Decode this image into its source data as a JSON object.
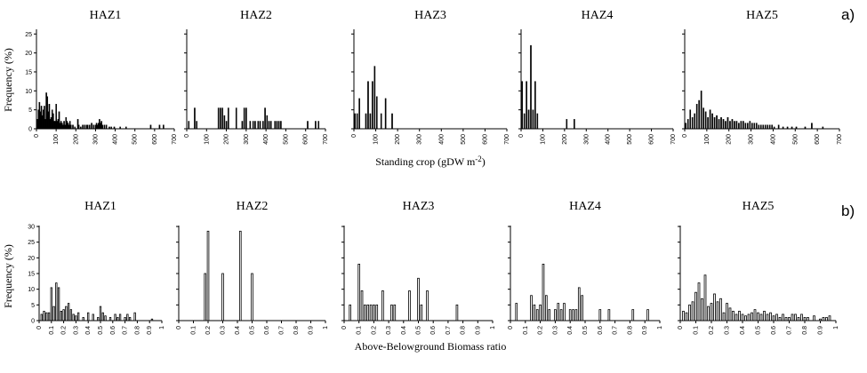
{
  "chart_data": [
    {
      "type": "bar",
      "group_label": "a)",
      "xlabel": "Standing crop (gDW m",
      "xlabel_sup": "-2",
      "xlabel_close": ")",
      "ylabel": "Frequency (%)",
      "xlim": [
        0,
        700
      ],
      "ylim": [
        0,
        26
      ],
      "xticks": [
        0,
        100,
        200,
        300,
        400,
        500,
        600,
        700
      ],
      "xtick_labels": [
        "0",
        "100",
        "200",
        "300",
        "400",
        "500",
        "600",
        "700"
      ],
      "yticks": [
        0,
        5,
        10,
        15,
        20,
        25
      ],
      "ytick_labels": [
        "0",
        "5",
        "10",
        "15",
        "20",
        "25"
      ],
      "bar_style": "filled",
      "bar_width": 5,
      "panels": [
        {
          "title": "HAZ1",
          "series": [
            {
              "x": [
                5,
                10,
                15,
                20,
                25,
                30,
                35,
                40,
                45,
                50,
                55,
                60,
                65,
                70,
                75,
                80,
                85,
                90,
                95,
                100,
                105,
                110,
                115,
                120,
                125,
                130,
                135,
                140,
                145,
                150,
                155,
                160,
                165,
                170,
                175,
                185,
                195,
                210,
                215,
                225,
                235,
                245,
                255,
                260,
                270,
                280,
                290,
                300,
                305,
                310,
                315,
                320,
                325,
                330,
                335,
                345,
                355,
                370,
                380,
                395,
                425,
                455,
                580,
                625,
                645
              ],
              "values": [
                2.5,
                5,
                7,
                4.5,
                6,
                3.5,
                5,
                6,
                2.5,
                9.5,
                8.5,
                4.5,
                6.5,
                2.5,
                3,
                5,
                4,
                2,
                2,
                6.5,
                2,
                2.5,
                4.5,
                1.5,
                2,
                1.5,
                1,
                2,
                1,
                3,
                2,
                1.5,
                1,
                2,
                1,
                1,
                0.5,
                2.5,
                1,
                0.5,
                1,
                1,
                1,
                1,
                1,
                1.5,
                1,
                1,
                1.5,
                1,
                1.5,
                2.5,
                1.5,
                2,
                1,
                1,
                1,
                0.5,
                0.5,
                0.5,
                0.5,
                0.5,
                1,
                1,
                1
              ]
            }
          ]
        },
        {
          "title": "HAZ2",
          "series": [
            {
              "x": [
                10,
                40,
                50,
                160,
                170,
                180,
                190,
                200,
                210,
                250,
                280,
                290,
                300,
                320,
                335,
                345,
                360,
                370,
                385,
                395,
                405,
                415,
                425,
                445,
                455,
                465,
                475,
                610,
                650,
                665
              ],
              "values": [
                2,
                5.5,
                2,
                5.5,
                5.5,
                5.5,
                3.5,
                2,
                5.5,
                5.5,
                2,
                5.5,
                5.5,
                2,
                2,
                2,
                2,
                2,
                2,
                5.5,
                3.5,
                2,
                2,
                2,
                2,
                2,
                2,
                2,
                2,
                2
              ]
            }
          ]
        },
        {
          "title": "HAZ3",
          "series": [
            {
              "x": [
                5,
                15,
                25,
                55,
                65,
                75,
                85,
                95,
                105,
                125,
                145,
                175
              ],
              "values": [
                4,
                4,
                8,
                4,
                12.5,
                4,
                12.5,
                16.5,
                8.5,
                4,
                8,
                4
              ]
            }
          ]
        },
        {
          "title": "HAZ4",
          "series": [
            {
              "x": [
                5,
                15,
                25,
                35,
                45,
                55,
                65,
                75,
                210,
                245
              ],
              "values": [
                12.5,
                4,
                12.5,
                5,
                22,
                5,
                12.5,
                4,
                2.5,
                2.5
              ]
            }
          ]
        },
        {
          "title": "HAZ5",
          "series": [
            {
              "x": [
                5,
                15,
                25,
                35,
                45,
                55,
                65,
                75,
                85,
                95,
                105,
                115,
                125,
                135,
                145,
                155,
                165,
                175,
                185,
                195,
                205,
                215,
                225,
                235,
                245,
                255,
                265,
                275,
                285,
                295,
                305,
                315,
                325,
                335,
                345,
                355,
                365,
                375,
                385,
                395,
                405,
                425,
                445,
                465,
                485,
                505,
                545,
                575,
                625
              ],
              "values": [
                1.5,
                2.5,
                5,
                3,
                4,
                6.5,
                7.5,
                10,
                5.5,
                4.5,
                3,
                5,
                4,
                3,
                3.5,
                2.5,
                3,
                2.5,
                2,
                3,
                2,
                2.5,
                2,
                2,
                1.5,
                2,
                2,
                1.5,
                1.5,
                2,
                1.5,
                1.5,
                1.5,
                1,
                1,
                1,
                1,
                1,
                1,
                1,
                0.5,
                1,
                0.5,
                0.5,
                0.5,
                0.5,
                0.5,
                1.5,
                0.5
              ]
            }
          ]
        }
      ]
    },
    {
      "type": "bar",
      "group_label": "b)",
      "xlabel": "Above-Belowground Biomass ratio",
      "ylabel": "Frequency (%)",
      "xlim": [
        0,
        1
      ],
      "ylim": [
        0,
        30
      ],
      "xticks": [
        0,
        0.1,
        0.2,
        0.3,
        0.4,
        0.5,
        0.6,
        0.7,
        0.8,
        0.9,
        1
      ],
      "xtick_labels": [
        "0",
        "0.1",
        "0.2",
        "0.3",
        "0.4",
        "0.5",
        "0.6",
        "0.7",
        "0.8",
        "0.9",
        "1"
      ],
      "yticks": [
        0,
        5,
        10,
        15,
        20,
        25,
        30
      ],
      "ytick_labels": [
        "0",
        "5",
        "10",
        "15",
        "20",
        "25",
        "30"
      ],
      "bar_style": "hollow",
      "bar_width": 0.011,
      "panels": [
        {
          "title": "HAZ1",
          "series": [
            {
              "x": [
                0.02,
                0.04,
                0.06,
                0.08,
                0.1,
                0.12,
                0.14,
                0.16,
                0.18,
                0.2,
                0.22,
                0.24,
                0.26,
                0.28,
                0.3,
                0.32,
                0.36,
                0.4,
                0.44,
                0.48,
                0.5,
                0.52,
                0.54,
                0.58,
                0.62,
                0.64,
                0.66,
                0.7,
                0.72,
                0.74,
                0.78,
                0.92
              ],
              "values": [
                2,
                3,
                2.5,
                2.5,
                10.5,
                4.5,
                12,
                10.5,
                3,
                3.5,
                4.5,
                5.5,
                3.5,
                2,
                1.5,
                2.5,
                1,
                2.5,
                2,
                1,
                4.5,
                2.5,
                1.5,
                1,
                2,
                1,
                2,
                1,
                2,
                1,
                2.5,
                0.5
              ]
            }
          ]
        },
        {
          "title": "HAZ2",
          "series": [
            {
              "x": [
                0.18,
                0.2,
                0.3,
                0.42,
                0.5
              ],
              "values": [
                15,
                28.5,
                15,
                28.5,
                15
              ]
            }
          ]
        },
        {
          "title": "HAZ3",
          "series": [
            {
              "x": [
                0.04,
                0.1,
                0.12,
                0.14,
                0.16,
                0.18,
                0.2,
                0.22,
                0.26,
                0.32,
                0.34,
                0.44,
                0.5,
                0.52,
                0.56,
                0.76
              ],
              "values": [
                5,
                18,
                9.5,
                5,
                5,
                5,
                5,
                5,
                9.5,
                5,
                5,
                9.5,
                13.5,
                5,
                9.5,
                5
              ]
            }
          ]
        },
        {
          "title": "HAZ4",
          "series": [
            {
              "x": [
                0.04,
                0.14,
                0.16,
                0.18,
                0.2,
                0.22,
                0.24,
                0.26,
                0.3,
                0.32,
                0.34,
                0.36,
                0.4,
                0.42,
                0.44,
                0.46,
                0.48,
                0.6,
                0.66,
                0.82,
                0.92
              ],
              "values": [
                5.5,
                8,
                5,
                3.5,
                5,
                18,
                8,
                3.5,
                3.5,
                5.5,
                3.5,
                5.5,
                3.5,
                3.5,
                3.5,
                10.5,
                8,
                3.5,
                3.5,
                3.5,
                3.5
              ]
            }
          ]
        },
        {
          "title": "HAZ5",
          "series": [
            {
              "x": [
                0.02,
                0.04,
                0.06,
                0.08,
                0.1,
                0.12,
                0.14,
                0.16,
                0.18,
                0.2,
                0.22,
                0.24,
                0.26,
                0.28,
                0.3,
                0.32,
                0.34,
                0.36,
                0.38,
                0.4,
                0.42,
                0.44,
                0.46,
                0.48,
                0.5,
                0.52,
                0.54,
                0.56,
                0.58,
                0.6,
                0.62,
                0.64,
                0.66,
                0.68,
                0.7,
                0.72,
                0.74,
                0.76,
                0.78,
                0.8,
                0.82,
                0.86,
                0.9,
                0.92,
                0.94,
                0.96
              ],
              "values": [
                3,
                2.5,
                5,
                6,
                9,
                12,
                7,
                14.5,
                4.5,
                5.5,
                8.5,
                6,
                7,
                2.5,
                5.5,
                4,
                3,
                2,
                3,
                2,
                1.5,
                2,
                2.5,
                3.5,
                2.5,
                2,
                3,
                2,
                2.5,
                1.5,
                2,
                1,
                2,
                1,
                1,
                2,
                2,
                1,
                2,
                1,
                1,
                1.5,
                0.5,
                1,
                1,
                1.5
              ]
            }
          ]
        }
      ]
    }
  ]
}
